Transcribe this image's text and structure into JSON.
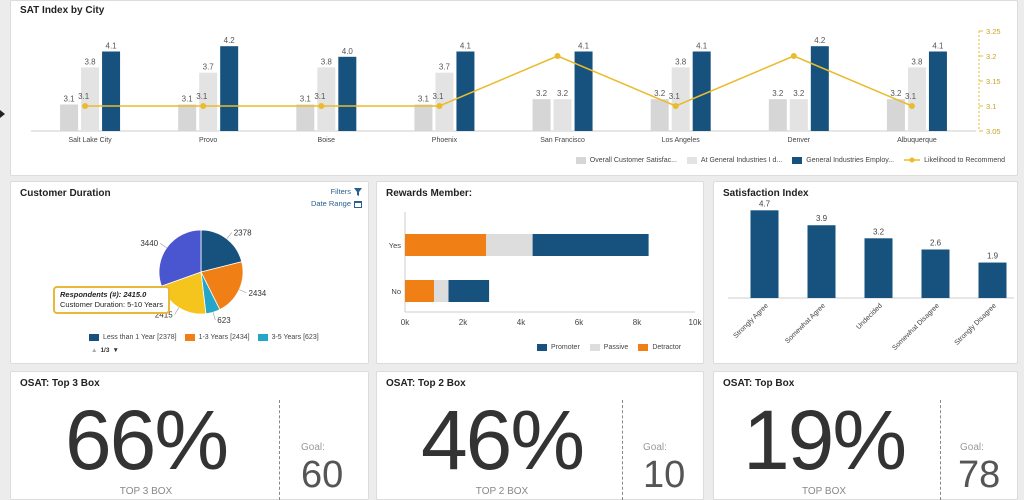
{
  "sat_panel": {
    "title": "SAT Index by City",
    "legend": [
      {
        "label": "Overall Customer Satisfac...",
        "color": "#d6d6d6",
        "kind": "box"
      },
      {
        "label": "At General Industries I d...",
        "color": "#e3e3e3",
        "kind": "box"
      },
      {
        "label": "General Industries Employ...",
        "color": "#16527d",
        "kind": "box"
      },
      {
        "label": "Likelihood to Recommend",
        "color": "#eabb2c",
        "kind": "line"
      }
    ]
  },
  "duration_panel": {
    "title": "Customer Duration",
    "filters_label": "Filters",
    "date_range_label": "Date Range",
    "tooltip_line1": "Respondents (#): 2415.0",
    "tooltip_line2": "Customer Duration: 5-10 Years",
    "legend": [
      {
        "label": "Less than 1 Year [2378]",
        "color": "#16527d"
      },
      {
        "label": "1-3 Years [2434]",
        "color": "#f07f15"
      },
      {
        "label": "3-5 Years [623]",
        "color": "#24a6c8"
      }
    ],
    "pager": "1/3"
  },
  "rewards_panel": {
    "title": "Rewards Member:",
    "legend": [
      {
        "label": "Promoter",
        "color": "#16527d"
      },
      {
        "label": "Passive",
        "color": "#dddddd"
      },
      {
        "label": "Detractor",
        "color": "#f07f15"
      }
    ]
  },
  "satisfaction_panel": {
    "title": "Satisfaction Index"
  },
  "kpis": [
    {
      "title": "OSAT: Top 3 Box",
      "value": "66%",
      "sub": "TOP 3 BOX",
      "goal_label": "Goal:",
      "goal": "60"
    },
    {
      "title": "OSAT: Top 2 Box",
      "value": "46%",
      "sub": "TOP 2 BOX",
      "goal_label": "Goal:",
      "goal": "10"
    },
    {
      "title": "OSAT: Top Box",
      "value": "19%",
      "sub": "TOP BOX",
      "goal_label": "Goal:",
      "goal": "78"
    }
  ],
  "chart_data": [
    {
      "type": "bar",
      "title": "SAT Index by City",
      "categories": [
        "Salt Lake City",
        "Provo",
        "Boise",
        "Phoenix",
        "San Francisco",
        "Los Angeles",
        "Denver",
        "Albuquerque"
      ],
      "series": [
        {
          "name": "Overall Customer Satisfac...",
          "type": "bar",
          "values": [
            3.1,
            3.1,
            3.1,
            3.1,
            3.2,
            3.2,
            3.2,
            3.2
          ]
        },
        {
          "name": "At General Industries I d...",
          "type": "bar",
          "values": [
            3.8,
            3.7,
            3.8,
            3.7,
            3.2,
            3.8,
            3.2,
            3.8
          ]
        },
        {
          "name": "General Industries Employ...",
          "type": "bar",
          "values": [
            4.1,
            4.2,
            4.0,
            4.1,
            4.1,
            4.1,
            4.2,
            4.1
          ]
        },
        {
          "name": "Likelihood to Recommend",
          "type": "line",
          "axis": "right",
          "values": [
            3.1,
            3.1,
            3.1,
            3.1,
            3.2,
            3.1,
            3.2,
            3.1
          ]
        }
      ],
      "right_axis_ticks": [
        "3.25",
        "3.2",
        "3.15",
        "3.1",
        "3.05"
      ],
      "right_ylim": [
        3.05,
        3.25
      ]
    },
    {
      "type": "pie",
      "title": "Customer Duration",
      "slices": [
        {
          "label": "Less than 1 Year",
          "value": 2378,
          "color": "#16527d"
        },
        {
          "label": "1-3 Years",
          "value": 2434,
          "color": "#f07f15"
        },
        {
          "label": "3-5 Years",
          "value": 623,
          "color": "#24a6c8"
        },
        {
          "label": "5-10 Years",
          "value": 2415,
          "color": "#f6c51d"
        },
        {
          "label": "",
          "value": 3440,
          "color": "#4a56cf"
        }
      ]
    },
    {
      "type": "bar",
      "orientation": "horizontal",
      "stacked": true,
      "title": "Rewards Member:",
      "categories": [
        "Yes",
        "No"
      ],
      "series": [
        {
          "name": "Detractor",
          "values": [
            2800,
            1000
          ]
        },
        {
          "name": "Passive",
          "values": [
            1600,
            500
          ]
        },
        {
          "name": "Promoter",
          "values": [
            4000,
            1400
          ]
        }
      ],
      "xticks": [
        "0k",
        "2k",
        "4k",
        "6k",
        "8k",
        "10k"
      ],
      "xlim": [
        0,
        10000
      ]
    },
    {
      "type": "bar",
      "title": "Satisfaction Index",
      "categories": [
        "Strongly Agree",
        "Somewhat Agree",
        "Undecided",
        "Somewhat Disagree",
        "Strongly Disagree"
      ],
      "values": [
        4.7,
        3.9,
        3.2,
        2.6,
        1.9
      ],
      "ylim": [
        0,
        5
      ]
    }
  ]
}
